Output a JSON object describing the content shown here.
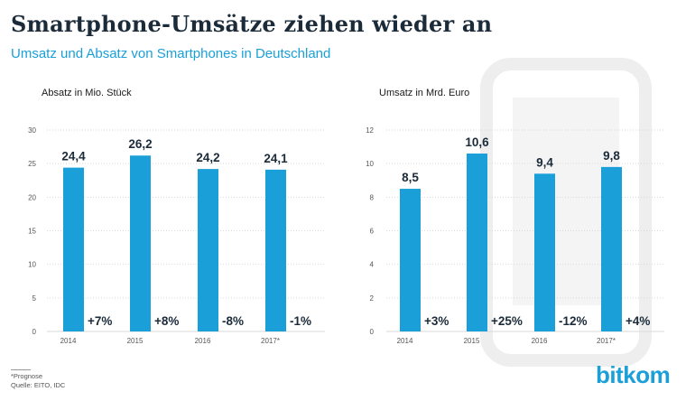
{
  "title": "Smartphone-Umsätze ziehen wieder an",
  "subtitle": "Umsatz und Absatz von Smartphones in Deutschland",
  "footnote": {
    "prognose": "*Prognose",
    "source": "Quelle: EITO, IDC"
  },
  "logo": "bitkom",
  "colors": {
    "bar": "#1a9fd9",
    "title": "#1b2b3a",
    "subtitle": "#1a9fd9",
    "grid": "#d9d9d9"
  },
  "chart_data": [
    {
      "type": "bar",
      "title": "Absatz in Mio. Stück",
      "categories": [
        "2014",
        "2015",
        "2016",
        "2017*"
      ],
      "values": [
        24.4,
        26.2,
        24.2,
        24.1
      ],
      "value_labels": [
        "24,4",
        "26,2",
        "24,2",
        "24,1"
      ],
      "change_labels": [
        "+7%",
        "+8%",
        "-8%",
        "-1%"
      ],
      "yticks": [
        "0",
        "5",
        "10",
        "15",
        "20",
        "25",
        "30"
      ],
      "ylim": [
        0,
        30
      ],
      "grid": true
    },
    {
      "type": "bar",
      "title": "Umsatz in Mrd. Euro",
      "categories": [
        "2014",
        "2015",
        "2016",
        "2017*"
      ],
      "values": [
        8.5,
        10.6,
        9.4,
        9.8
      ],
      "value_labels": [
        "8,5",
        "10,6",
        "9,4",
        "9,8"
      ],
      "change_labels": [
        "+3%",
        "+25%",
        "-12%",
        "+4%"
      ],
      "yticks": [
        "0",
        "2",
        "4",
        "6",
        "8",
        "10",
        "12"
      ],
      "ylim": [
        0,
        12
      ],
      "grid": true
    }
  ]
}
